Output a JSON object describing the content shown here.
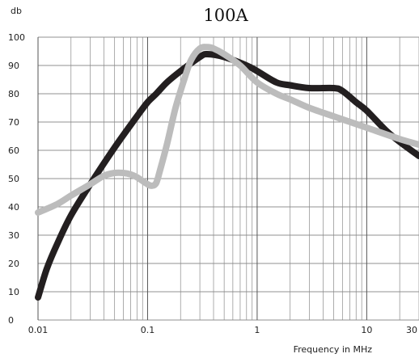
{
  "chart_data": {
    "type": "line",
    "title": "100A",
    "ylabel": "db",
    "xlabel": "Frequency in MHz",
    "x_scale": "log",
    "xlim": [
      0.01,
      30
    ],
    "ylim": [
      0,
      100
    ],
    "grid": true,
    "x_ticks": [
      {
        "value": 0.01,
        "label": "0.01"
      },
      {
        "value": 0.1,
        "label": "0.1"
      },
      {
        "value": 1,
        "label": "1"
      },
      {
        "value": 10,
        "label": "10"
      },
      {
        "value": 30,
        "label": "30"
      }
    ],
    "y_ticks": [
      {
        "value": 0,
        "label": "0"
      },
      {
        "value": 10,
        "label": "10"
      },
      {
        "value": 20,
        "label": "20"
      },
      {
        "value": 30,
        "label": "30"
      },
      {
        "value": 40,
        "label": "40"
      },
      {
        "value": 50,
        "label": "50"
      },
      {
        "value": 60,
        "label": "60"
      },
      {
        "value": 70,
        "label": "70"
      },
      {
        "value": 80,
        "label": "80"
      },
      {
        "value": 90,
        "label": "90"
      },
      {
        "value": 100,
        "label": "100"
      }
    ],
    "series": [
      {
        "color": "#231f20",
        "x": [
          0.01,
          0.012,
          0.015,
          0.02,
          0.03,
          0.05,
          0.08,
          0.1,
          0.12,
          0.15,
          0.2,
          0.3,
          0.35,
          0.5,
          0.8,
          1,
          1.5,
          2,
          3,
          5,
          6,
          8,
          10,
          15,
          20,
          30
        ],
        "y": [
          8,
          18,
          27,
          37,
          48,
          61,
          72,
          77,
          80,
          84,
          88,
          93,
          94,
          93,
          90,
          88,
          84,
          83,
          82,
          82,
          81,
          77,
          74,
          67,
          63,
          58
        ]
      },
      {
        "color": "#bcbcbc",
        "x": [
          0.01,
          0.015,
          0.02,
          0.03,
          0.04,
          0.05,
          0.06,
          0.07,
          0.08,
          0.1,
          0.11,
          0.12,
          0.13,
          0.15,
          0.18,
          0.22,
          0.25,
          0.3,
          0.35,
          0.4,
          0.5,
          0.7,
          1,
          1.5,
          2,
          3,
          5,
          10,
          20,
          30
        ],
        "y": [
          38,
          41,
          44,
          48,
          51,
          52,
          52,
          51.5,
          50.5,
          48,
          47.5,
          48.5,
          53,
          62,
          75,
          86,
          92,
          96,
          96.5,
          96,
          94,
          90,
          84,
          80,
          78,
          75,
          72,
          68,
          64,
          62
        ]
      }
    ]
  }
}
